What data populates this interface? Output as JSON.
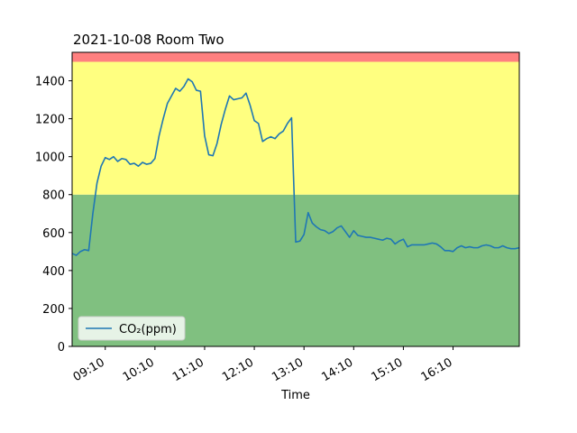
{
  "chart_data": {
    "type": "area",
    "title": "2021-10-08 Room Two",
    "xlabel": "Time",
    "ylabel": "",
    "ylim": [
      0,
      1550
    ],
    "xlim": [
      "08:30",
      "17:30"
    ],
    "yticks": [
      0,
      200,
      400,
      600,
      800,
      1000,
      1200,
      1400
    ],
    "xticks": [
      "09:10",
      "10:10",
      "11:10",
      "12:10",
      "13:10",
      "14:10",
      "15:10",
      "16:10"
    ],
    "grid": false,
    "legend": {
      "position": "bottom-left",
      "entries": [
        "CO₂(ppm)"
      ]
    },
    "bands": [
      {
        "from": 0,
        "to": 800,
        "color": "#80c080"
      },
      {
        "from": 800,
        "to": 1500,
        "color": "#ffff80"
      },
      {
        "from": 1500,
        "to": 1550,
        "color": "#ff8080"
      }
    ],
    "series": [
      {
        "name": "CO₂(ppm)",
        "color": "#1f77b4",
        "points": [
          [
            "08:30",
            490
          ],
          [
            "08:35",
            480
          ],
          [
            "08:40",
            500
          ],
          [
            "08:45",
            510
          ],
          [
            "08:50",
            505
          ],
          [
            "08:55",
            700
          ],
          [
            "09:00",
            860
          ],
          [
            "09:05",
            950
          ],
          [
            "09:10",
            995
          ],
          [
            "09:15",
            985
          ],
          [
            "09:20",
            1000
          ],
          [
            "09:25",
            975
          ],
          [
            "09:30",
            990
          ],
          [
            "09:35",
            985
          ],
          [
            "09:40",
            960
          ],
          [
            "09:45",
            965
          ],
          [
            "09:50",
            950
          ],
          [
            "09:55",
            970
          ],
          [
            "10:00",
            960
          ],
          [
            "10:05",
            965
          ],
          [
            "10:10",
            990
          ],
          [
            "10:15",
            1110
          ],
          [
            "10:20",
            1200
          ],
          [
            "10:25",
            1280
          ],
          [
            "10:30",
            1320
          ],
          [
            "10:35",
            1360
          ],
          [
            "10:40",
            1345
          ],
          [
            "10:45",
            1370
          ],
          [
            "10:50",
            1410
          ],
          [
            "10:55",
            1395
          ],
          [
            "11:00",
            1350
          ],
          [
            "11:05",
            1345
          ],
          [
            "11:10",
            1110
          ],
          [
            "11:15",
            1010
          ],
          [
            "11:20",
            1005
          ],
          [
            "11:25",
            1070
          ],
          [
            "11:30",
            1170
          ],
          [
            "11:35",
            1250
          ],
          [
            "11:40",
            1320
          ],
          [
            "11:45",
            1300
          ],
          [
            "11:50",
            1305
          ],
          [
            "11:55",
            1310
          ],
          [
            "12:00",
            1335
          ],
          [
            "12:05",
            1270
          ],
          [
            "12:10",
            1190
          ],
          [
            "12:15",
            1175
          ],
          [
            "12:20",
            1080
          ],
          [
            "12:25",
            1095
          ],
          [
            "12:30",
            1105
          ],
          [
            "12:35",
            1095
          ],
          [
            "12:40",
            1120
          ],
          [
            "12:45",
            1135
          ],
          [
            "12:50",
            1175
          ],
          [
            "12:55",
            1205
          ],
          [
            "13:00",
            550
          ],
          [
            "13:05",
            555
          ],
          [
            "13:10",
            590
          ],
          [
            "13:15",
            705
          ],
          [
            "13:20",
            650
          ],
          [
            "13:25",
            630
          ],
          [
            "13:30",
            615
          ],
          [
            "13:35",
            610
          ],
          [
            "13:40",
            595
          ],
          [
            "13:45",
            605
          ],
          [
            "13:50",
            625
          ],
          [
            "13:55",
            635
          ],
          [
            "14:00",
            605
          ],
          [
            "14:05",
            575
          ],
          [
            "14:10",
            610
          ],
          [
            "14:15",
            585
          ],
          [
            "14:20",
            580
          ],
          [
            "14:25",
            575
          ],
          [
            "14:30",
            575
          ],
          [
            "14:35",
            570
          ],
          [
            "14:40",
            565
          ],
          [
            "14:45",
            560
          ],
          [
            "14:50",
            570
          ],
          [
            "14:55",
            565
          ],
          [
            "15:00",
            540
          ],
          [
            "15:05",
            555
          ],
          [
            "15:10",
            565
          ],
          [
            "15:15",
            525
          ],
          [
            "15:20",
            535
          ],
          [
            "15:25",
            535
          ],
          [
            "15:30",
            535
          ],
          [
            "15:35",
            535
          ],
          [
            "15:40",
            540
          ],
          [
            "15:45",
            545
          ],
          [
            "15:50",
            540
          ],
          [
            "15:55",
            525
          ],
          [
            "16:00",
            505
          ],
          [
            "16:05",
            505
          ],
          [
            "16:10",
            500
          ],
          [
            "16:15",
            520
          ],
          [
            "16:20",
            530
          ],
          [
            "16:25",
            520
          ],
          [
            "16:30",
            525
          ],
          [
            "16:35",
            520
          ],
          [
            "16:40",
            520
          ],
          [
            "16:45",
            530
          ],
          [
            "16:50",
            535
          ],
          [
            "16:55",
            530
          ],
          [
            "17:00",
            520
          ],
          [
            "17:05",
            520
          ],
          [
            "17:10",
            530
          ],
          [
            "17:15",
            520
          ],
          [
            "17:20",
            515
          ],
          [
            "17:25",
            515
          ],
          [
            "17:30",
            520
          ]
        ]
      }
    ]
  }
}
